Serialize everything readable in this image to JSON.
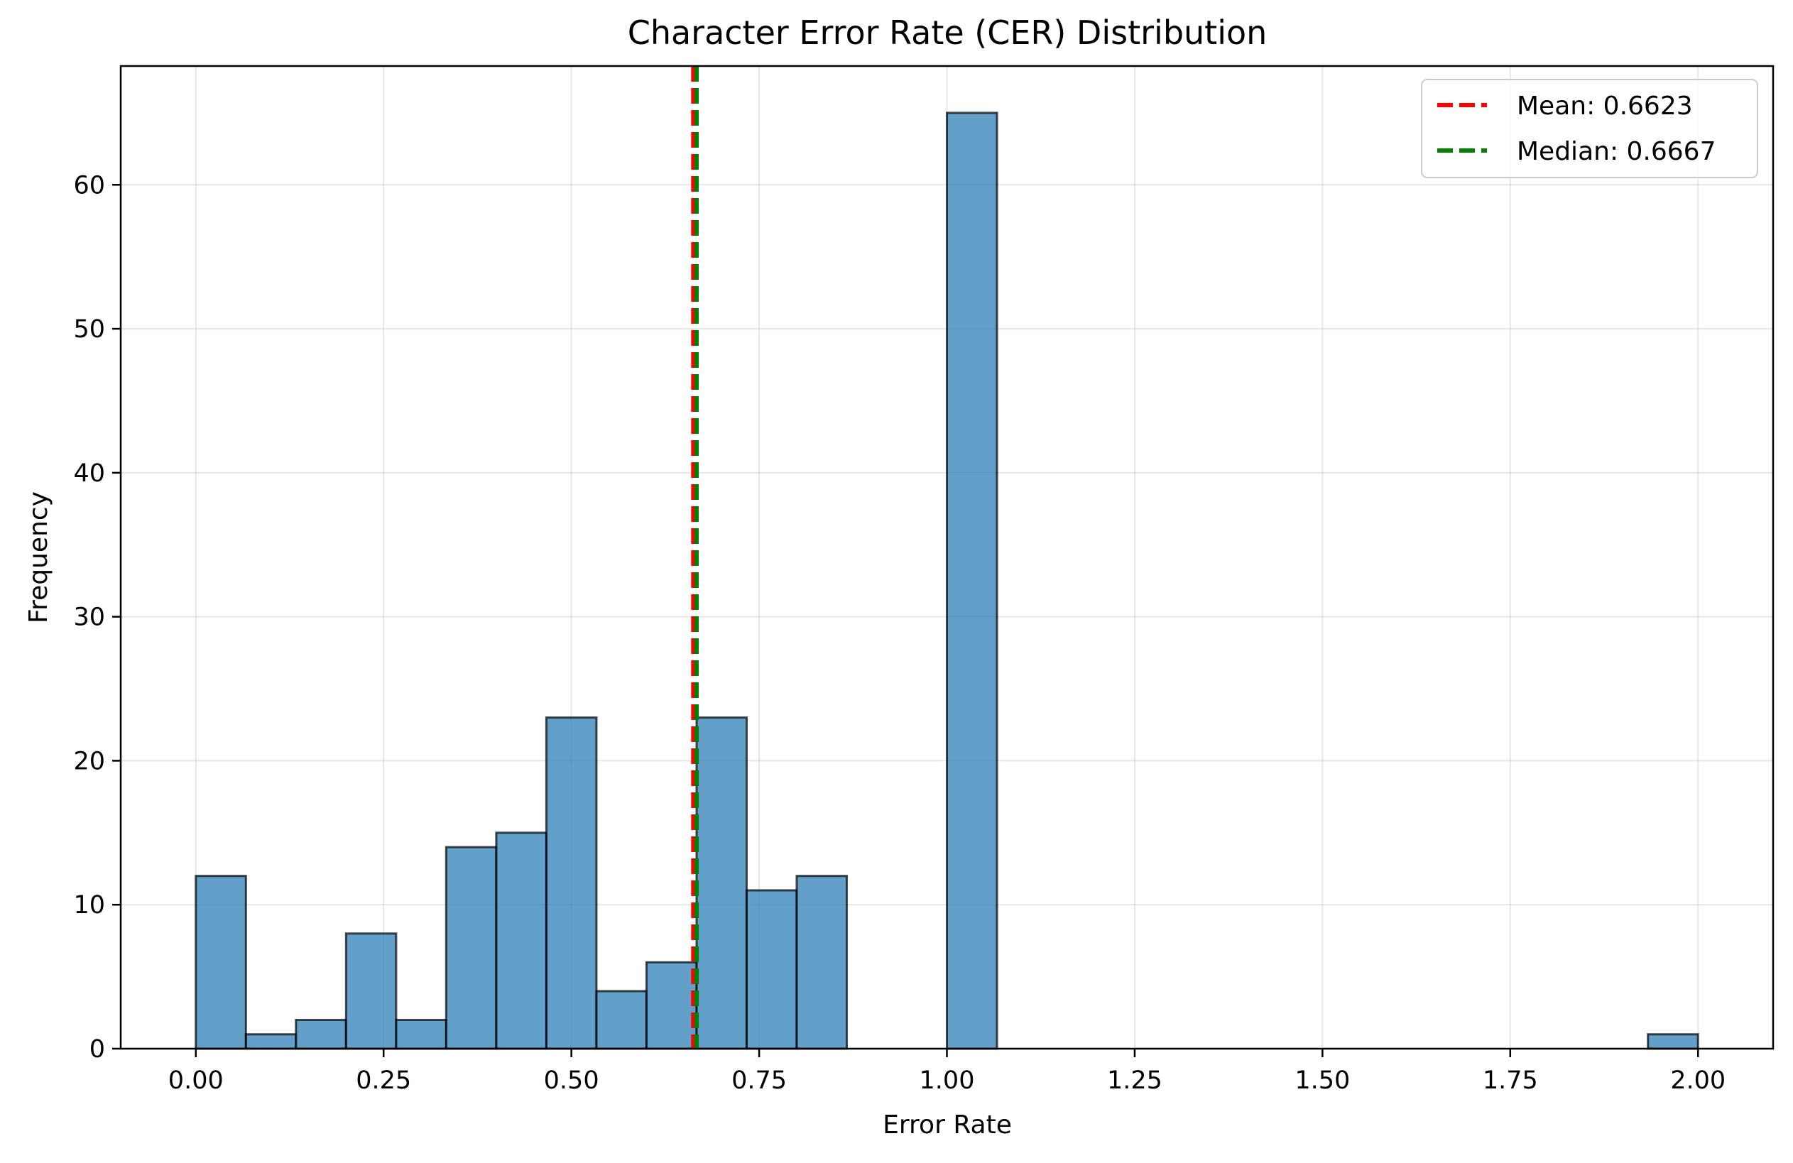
{
  "chart_data": {
    "type": "bar",
    "title": "Character Error Rate (CER) Distribution",
    "xlabel": "Error Rate",
    "ylabel": "Frequency",
    "xlim": [
      -0.1,
      2.1
    ],
    "ylim": [
      0,
      68.25
    ],
    "x_ticks": [
      0.0,
      0.25,
      0.5,
      0.75,
      1.0,
      1.25,
      1.5,
      1.75,
      2.0
    ],
    "x_tick_labels": [
      "0.00",
      "0.25",
      "0.50",
      "0.75",
      "1.00",
      "1.25",
      "1.50",
      "1.75",
      "2.00"
    ],
    "y_ticks": [
      0,
      10,
      20,
      30,
      40,
      50,
      60
    ],
    "y_tick_labels": [
      "0",
      "10",
      "20",
      "30",
      "40",
      "50",
      "60"
    ],
    "grid": true,
    "bin_width": 0.0667,
    "bins_start": [
      0.0,
      0.0667,
      0.1333,
      0.2,
      0.2667,
      0.3333,
      0.4,
      0.4667,
      0.5333,
      0.6,
      0.6667,
      0.7333,
      0.8,
      0.8667,
      0.9333,
      1.0,
      1.0667,
      1.1333,
      1.2,
      1.2667,
      1.3333,
      1.4,
      1.4667,
      1.5333,
      1.6,
      1.6667,
      1.7333,
      1.8,
      1.8667,
      1.9333
    ],
    "values": [
      12,
      1,
      2,
      8,
      2,
      14,
      15,
      23,
      4,
      6,
      23,
      11,
      12,
      0,
      0,
      65,
      0,
      0,
      0,
      0,
      0,
      0,
      0,
      0,
      0,
      0,
      0,
      0,
      0,
      1
    ],
    "bar_color": "#1f77b4",
    "bar_edge_color": "#000000",
    "reference_lines": [
      {
        "label": "Mean: 0.6623",
        "value": 0.6623,
        "color": "#ff0000"
      },
      {
        "label": "Median: 0.6667",
        "value": 0.6667,
        "color": "#008000"
      }
    ],
    "legend_position": "top-right"
  }
}
